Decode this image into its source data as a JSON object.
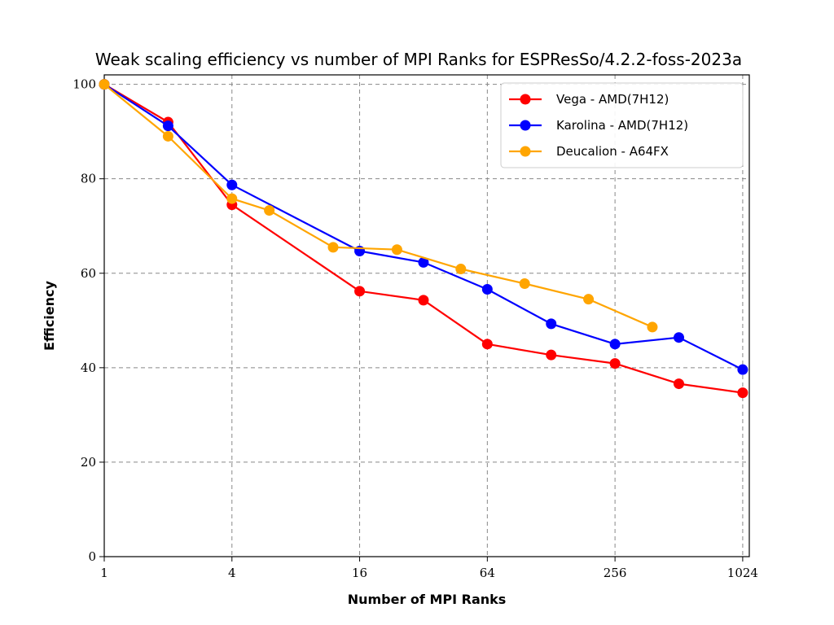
{
  "chart_data": {
    "type": "line",
    "title": "Weak scaling efficiency vs number of MPI Ranks for ESPResSo/4.2.2-foss-2023a",
    "xlabel": "Number of MPI Ranks",
    "ylabel": "Efficiency",
    "xscale": "log2",
    "xlim": [
      1,
      1100
    ],
    "ylim": [
      0,
      102
    ],
    "xticks": [
      1,
      4,
      16,
      64,
      256,
      1024
    ],
    "xtick_labels": [
      "1",
      "4",
      "16",
      "64",
      "256",
      "1024"
    ],
    "yticks": [
      0,
      20,
      40,
      60,
      80,
      100
    ],
    "ytick_labels": [
      "0",
      "20",
      "40",
      "60",
      "80",
      "100"
    ],
    "grid": true,
    "legend_position": "top-right",
    "series": [
      {
        "name": "Vega - AMD(7H12)",
        "color": "#ff0000",
        "x": [
          1,
          2,
          4,
          16,
          32,
          64,
          128,
          256,
          512,
          1024
        ],
        "y": [
          100,
          92,
          74.5,
          56.2,
          54.3,
          45,
          42.7,
          40.9,
          36.6,
          34.7
        ]
      },
      {
        "name": "Karolina - AMD(7H12)",
        "color": "#0000ff",
        "x": [
          1,
          2,
          4,
          16,
          32,
          64,
          128,
          256,
          512,
          1024
        ],
        "y": [
          100,
          91.2,
          78.7,
          64.7,
          62.3,
          56.6,
          49.3,
          45,
          46.4,
          39.6
        ]
      },
      {
        "name": "Deucalion - A64FX",
        "color": "#ffa500",
        "x": [
          1,
          2,
          4,
          6,
          12,
          24,
          48,
          96,
          192,
          384
        ],
        "y": [
          100,
          89,
          75.8,
          73.3,
          65.5,
          65,
          60.9,
          57.8,
          54.5,
          48.6
        ]
      }
    ]
  }
}
